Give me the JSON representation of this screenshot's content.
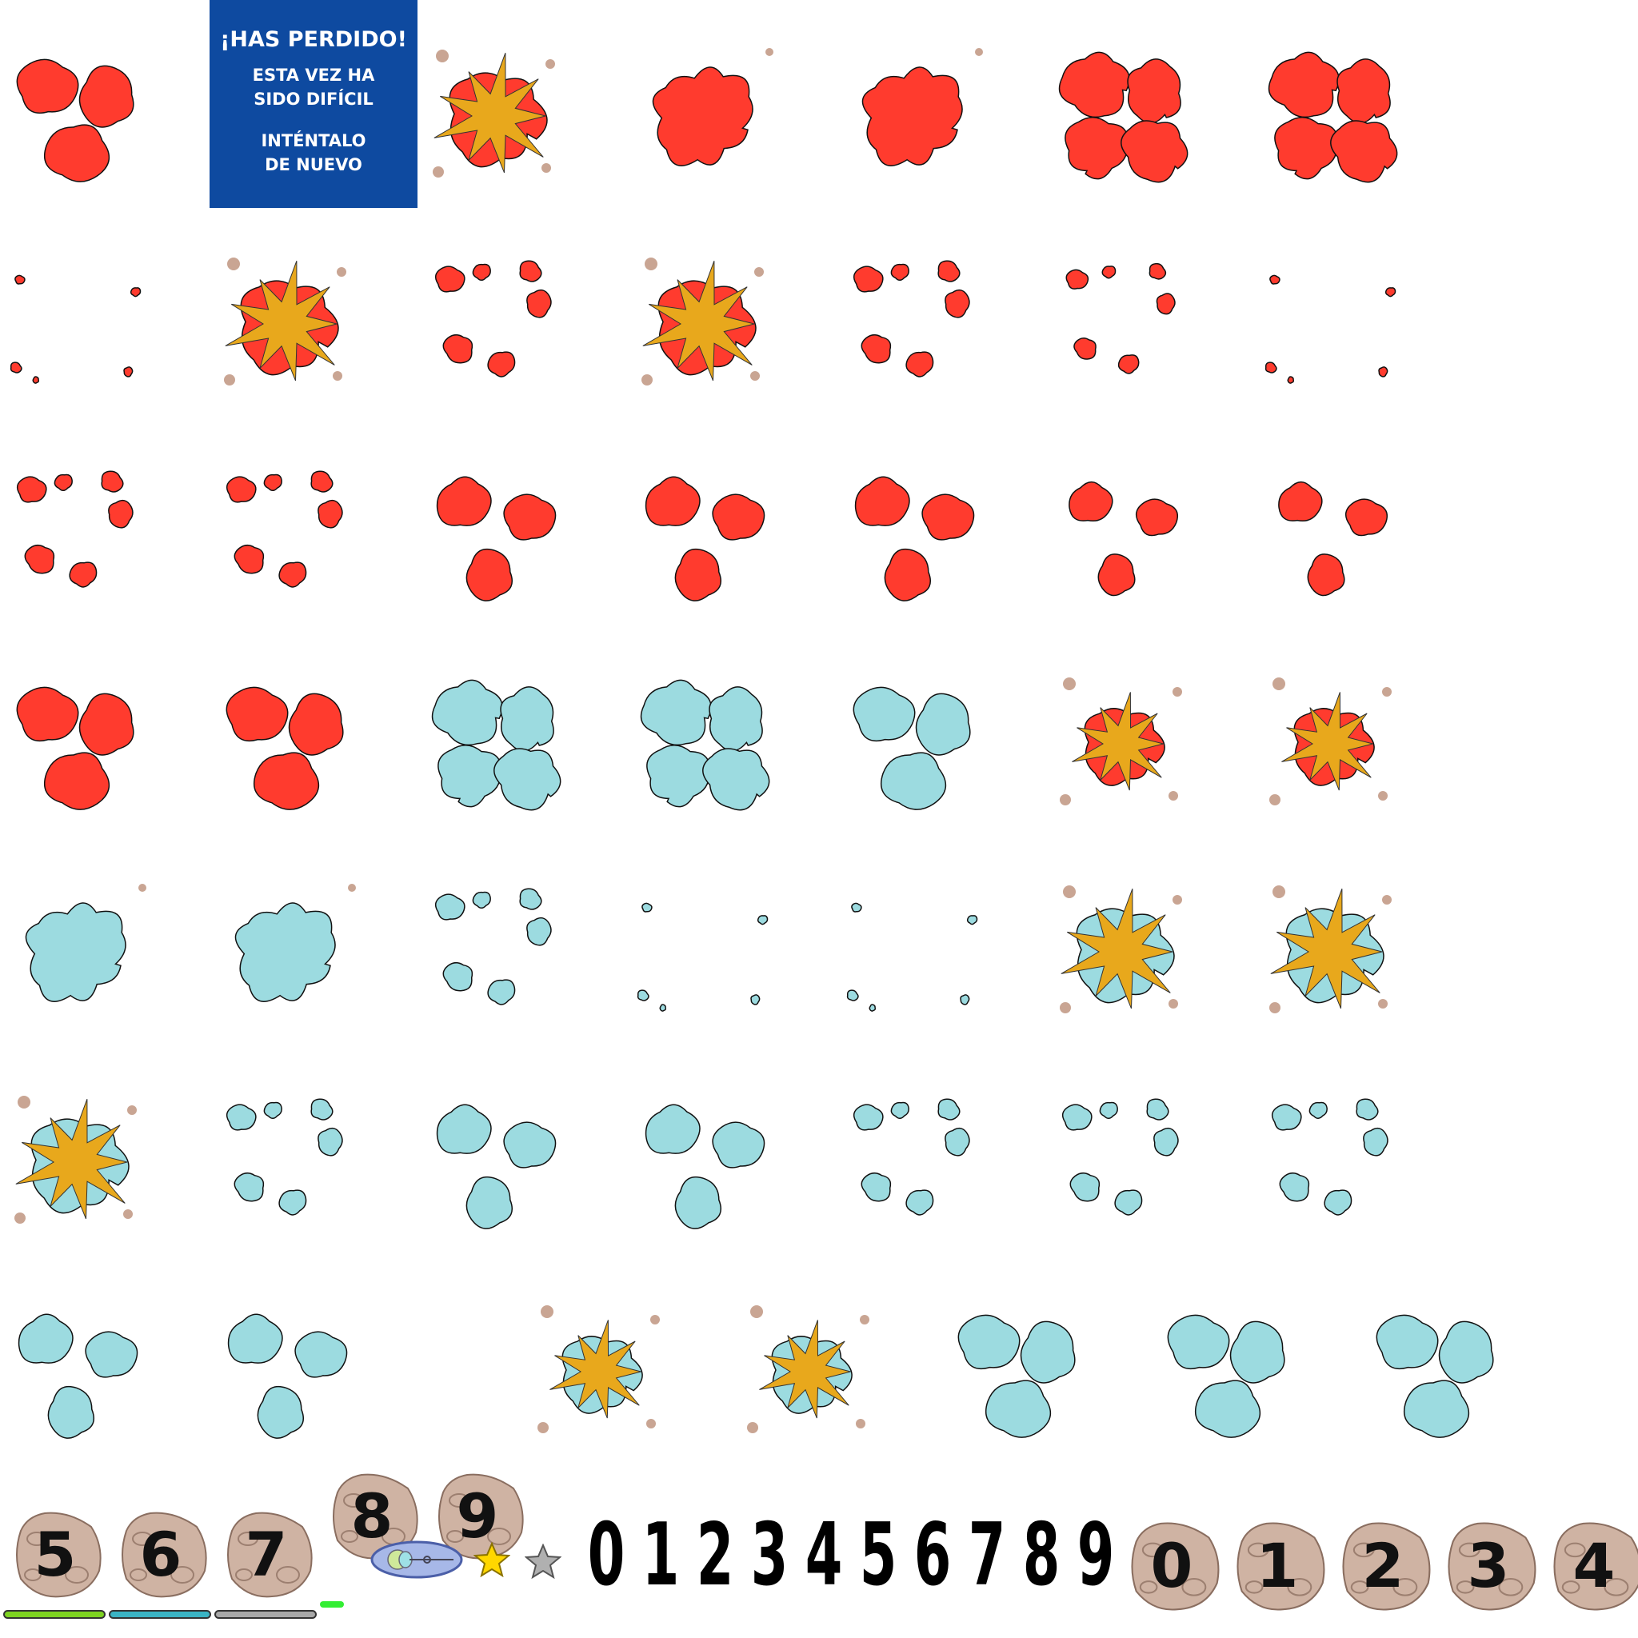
{
  "banner": {
    "title": "¡HAS PERDIDO!",
    "line1": "ESTA VEZ HA",
    "line2": "SIDO DIFÍCIL",
    "line3": "INTÉNTALO",
    "line4": "DE NUEVO"
  },
  "colors": {
    "red": "#ff3b2e",
    "blue": "#9cdbe0",
    "blast": "#e8a81c",
    "debris": "#c9a593",
    "rock": "#cfb3a3"
  },
  "sprites": [
    [
      "red-burst",
      "banner",
      "red-explosion",
      "red-big",
      "red-big",
      "red-quad",
      "red-quad"
    ],
    [
      "red-specks",
      "red-explosion",
      "red-scatter",
      "red-explosion",
      "red-scatter",
      "red-scatter-small",
      "red-specks"
    ],
    [
      "red-scatter",
      "red-scatter",
      "red-trio",
      "red-trio",
      "red-trio",
      "red-trio-small",
      "red-trio-small"
    ],
    [
      "red-burst",
      "red-burst",
      "blue-quad",
      "blue-quad",
      "blue-burst",
      "red-explosion-small",
      "red-explosion-small"
    ],
    [
      "blue-big",
      "blue-big",
      "blue-scatter",
      "blue-specks",
      "blue-specks",
      "blue-explosion",
      "blue-explosion"
    ],
    [
      "blue-explosion",
      "blue-scatter",
      "blue-trio",
      "blue-trio",
      "blue-scatter",
      "blue-scatter",
      "blue-scatter"
    ],
    [
      "blue-trio",
      "blue-trio",
      "empty",
      "blue-explosion-small",
      "blue-explosion-small",
      "blue-burst",
      "blue-burst",
      "blue-burst"
    ]
  ],
  "rocks_left": [
    "5",
    "6",
    "7",
    "8",
    "9"
  ],
  "digits": [
    "0",
    "1",
    "2",
    "3",
    "4",
    "5",
    "6",
    "7",
    "8",
    "9"
  ],
  "rocks_right": [
    "0",
    "1",
    "2",
    "3",
    "4"
  ],
  "bars": [
    "green",
    "cyan",
    "grey"
  ],
  "icons": [
    "ship-icon",
    "star-gold-icon",
    "star-grey-icon"
  ]
}
